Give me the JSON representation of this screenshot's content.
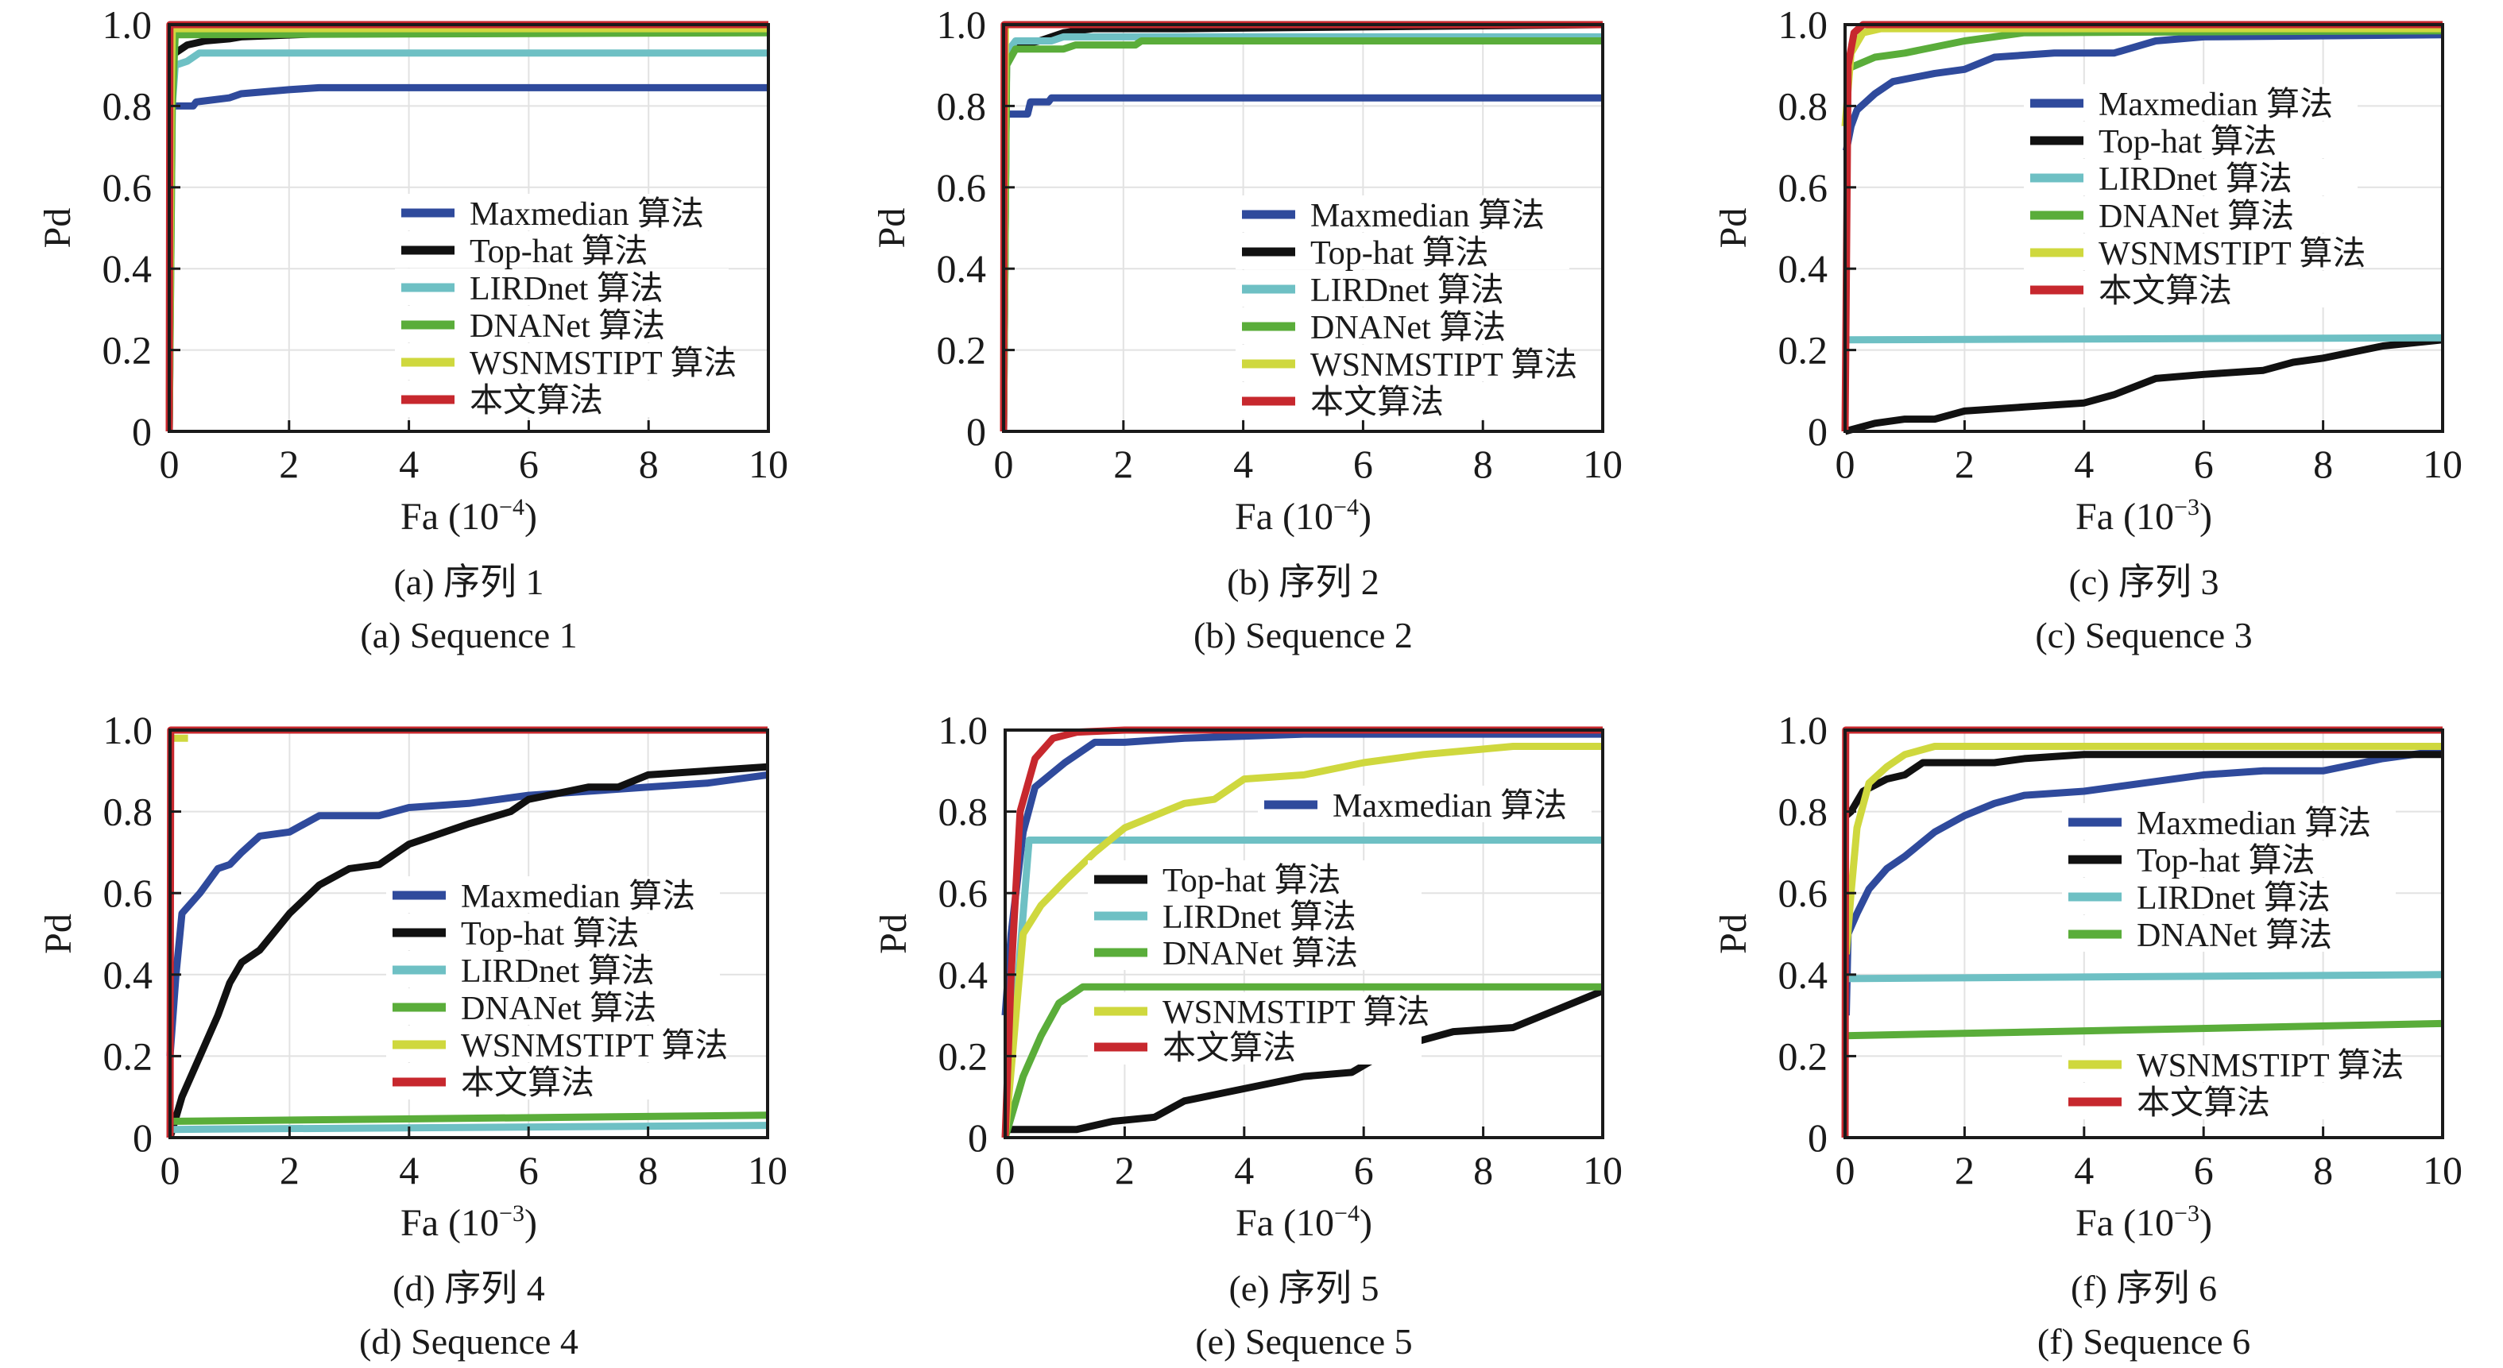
{
  "figure": {
    "legend_labels": [
      "Maxmedian 算法",
      "Top-hat 算法",
      "LIRDnet 算法",
      "DNANet 算法",
      "WSNMSTIPT 算法",
      "本文算法"
    ],
    "series_colors": {
      "Maxmedian": "#2f4a9c",
      "Top-hat": "#111111",
      "LIRDnet": "#6ec0c4",
      "DNANet": "#5aad3a",
      "WSNMSTIPT": "#cfd83e",
      "Ours": "#c7282e"
    }
  },
  "chart_data": [
    {
      "id": "a",
      "type": "line",
      "title": "",
      "caption_cn": "(a) 序列 1",
      "caption_en": "(a) Sequence 1",
      "xlabel": "Fa (10",
      "xlabel_exp": "−4",
      "xlabel_close": ")",
      "ylabel": "Pd",
      "xlim": [
        0,
        10
      ],
      "ylim": [
        0,
        1
      ],
      "xticks": [
        "0",
        "2",
        "4",
        "6",
        "8",
        "10"
      ],
      "yticks": [
        "0",
        "0.2",
        "0.4",
        "0.6",
        "0.8",
        "1.0"
      ],
      "grid": true,
      "legend": "center-right",
      "series": [
        {
          "name": "Maxmedian 算法",
          "key": "Maxmedian",
          "x": [
            0,
            0.4,
            0.45,
            1.0,
            1.2,
            2.0,
            2.5,
            10
          ],
          "y": [
            0.8,
            0.8,
            0.81,
            0.82,
            0.83,
            0.84,
            0.845,
            0.845
          ]
        },
        {
          "name": "Top-hat 算法",
          "key": "Top-hat",
          "x": [
            0,
            0.05,
            0.1,
            0.3,
            0.6,
            1.0,
            1.2,
            3.0,
            4.0,
            10
          ],
          "y": [
            0,
            0.93,
            0.93,
            0.95,
            0.96,
            0.965,
            0.97,
            0.98,
            0.985,
            0.985
          ]
        },
        {
          "name": "LIRDnet 算法",
          "key": "LIRDnet",
          "x": [
            0,
            0.05,
            0.1,
            0.3,
            0.5,
            10
          ],
          "y": [
            0,
            0.8,
            0.9,
            0.91,
            0.93,
            0.93
          ]
        },
        {
          "name": "DNANet 算法",
          "key": "DNANet",
          "x": [
            0,
            0.05,
            0.1,
            10
          ],
          "y": [
            0,
            0.8,
            0.975,
            0.98
          ]
        },
        {
          "name": "WSNMSTIPT 算法",
          "key": "WSNMSTIPT",
          "x": [
            0,
            0.03,
            0.05,
            10
          ],
          "y": [
            0,
            0.8,
            0.99,
            0.99
          ]
        },
        {
          "name": "本文算法",
          "key": "Ours",
          "x": [
            0,
            0.01,
            10
          ],
          "y": [
            0,
            1.0,
            1.0
          ]
        }
      ]
    },
    {
      "id": "b",
      "type": "line",
      "title": "",
      "caption_cn": "(b) 序列 2",
      "caption_en": "(b) Sequence 2",
      "xlabel": "Fa (10",
      "xlabel_exp": "−4",
      "xlabel_close": ")",
      "ylabel": "Pd",
      "xlim": [
        0,
        10
      ],
      "ylim": [
        0,
        1
      ],
      "xticks": [
        "0",
        "2",
        "4",
        "6",
        "8",
        "10"
      ],
      "yticks": [
        "0",
        "0.2",
        "0.4",
        "0.6",
        "0.8",
        "1.0"
      ],
      "grid": true,
      "legend": "center-right",
      "series": [
        {
          "name": "Maxmedian 算法",
          "key": "Maxmedian",
          "x": [
            0,
            0.4,
            0.45,
            0.75,
            0.8,
            10
          ],
          "y": [
            0.78,
            0.78,
            0.81,
            0.81,
            0.82,
            0.82
          ]
        },
        {
          "name": "Top-hat 算法",
          "key": "Top-hat",
          "x": [
            0,
            0.05,
            0.3,
            0.6,
            1.0,
            1.5,
            3.0,
            10
          ],
          "y": [
            0,
            0.93,
            0.95,
            0.96,
            0.98,
            0.99,
            0.99,
            1.0
          ]
        },
        {
          "name": "LIRDnet 算法",
          "key": "LIRDnet",
          "x": [
            0,
            0.05,
            0.2,
            0.8,
            1.0,
            10
          ],
          "y": [
            0,
            0.93,
            0.96,
            0.96,
            0.97,
            0.97
          ]
        },
        {
          "name": "DNANet 算法",
          "key": "DNANet",
          "x": [
            0,
            0.05,
            0.2,
            1.0,
            1.2,
            2.2,
            2.3,
            10
          ],
          "y": [
            0,
            0.9,
            0.94,
            0.94,
            0.95,
            0.95,
            0.96,
            0.96
          ]
        },
        {
          "name": "WSNMSTIPT 算法",
          "key": "WSNMSTIPT",
          "x": [
            0,
            0.03,
            10
          ],
          "y": [
            0,
            1.0,
            1.0
          ]
        },
        {
          "name": "本文算法",
          "key": "Ours",
          "x": [
            0,
            0.01,
            10
          ],
          "y": [
            0,
            1.0,
            1.0
          ]
        }
      ]
    },
    {
      "id": "c",
      "type": "line",
      "title": "",
      "caption_cn": "(c) 序列 3",
      "caption_en": "(c) Sequence 3",
      "xlabel": "Fa (10",
      "xlabel_exp": "−3",
      "xlabel_close": ")",
      "ylabel": "Pd",
      "xlim": [
        0,
        10
      ],
      "ylim": [
        0,
        1
      ],
      "xticks": [
        "0",
        "2",
        "4",
        "6",
        "8",
        "10"
      ],
      "yticks": [
        "0",
        "0.2",
        "0.4",
        "0.6",
        "0.8",
        "1.0"
      ],
      "grid": true,
      "legend": "upper-right",
      "series": [
        {
          "name": "Maxmedian 算法",
          "key": "Maxmedian",
          "x": [
            0.02,
            0.1,
            0.2,
            0.5,
            0.8,
            1.5,
            2.0,
            2.5,
            3.5,
            4.5,
            5.2,
            6.0,
            10
          ],
          "y": [
            0.69,
            0.75,
            0.79,
            0.83,
            0.86,
            0.88,
            0.89,
            0.92,
            0.93,
            0.93,
            0.96,
            0.97,
            0.975
          ]
        },
        {
          "name": "Top-hat 算法",
          "key": "Top-hat",
          "x": [
            0,
            0.5,
            1.0,
            1.5,
            2.0,
            3.0,
            4.0,
            4.5,
            5.2,
            6.0,
            7.0,
            7.5,
            8.0,
            9.0,
            10
          ],
          "y": [
            0,
            0.02,
            0.03,
            0.03,
            0.05,
            0.06,
            0.07,
            0.09,
            0.13,
            0.14,
            0.15,
            0.17,
            0.18,
            0.21,
            0.225
          ]
        },
        {
          "name": "LIRDnet 算法",
          "key": "LIRDnet",
          "x": [
            0,
            10
          ],
          "y": [
            0.225,
            0.23
          ]
        },
        {
          "name": "DNANet 算法",
          "key": "DNANet",
          "x": [
            0.02,
            0.5,
            1.0,
            2.0,
            3.0,
            10
          ],
          "y": [
            0.89,
            0.92,
            0.93,
            0.96,
            0.98,
            0.985
          ]
        },
        {
          "name": "WSNMSTIPT 算法",
          "key": "WSNMSTIPT",
          "x": [
            0,
            0.1,
            0.3,
            0.6,
            10
          ],
          "y": [
            0.75,
            0.93,
            0.98,
            0.99,
            0.99
          ]
        },
        {
          "name": "本文算法",
          "key": "Ours",
          "x": [
            0,
            0.05,
            0.15,
            0.3,
            10
          ],
          "y": [
            0,
            0.9,
            0.98,
            1.0,
            1.0
          ]
        }
      ]
    },
    {
      "id": "d",
      "type": "line",
      "title": "",
      "caption_cn": "(d) 序列 4",
      "caption_en": "(d) Sequence 4",
      "xlabel": "Fa (10",
      "xlabel_exp": "−3",
      "xlabel_close": ")",
      "ylabel": "Pd",
      "xlim": [
        0,
        10
      ],
      "ylim": [
        0,
        1
      ],
      "xticks": [
        "0",
        "2",
        "4",
        "6",
        "8",
        "10"
      ],
      "yticks": [
        "0",
        "0.2",
        "0.4",
        "0.6",
        "0.8",
        "1.0"
      ],
      "grid": true,
      "legend": "center-right",
      "series": [
        {
          "name": "Maxmedian 算法",
          "key": "Maxmedian",
          "x": [
            0,
            0.1,
            0.2,
            0.5,
            0.8,
            1.0,
            1.2,
            1.5,
            2.0,
            2.5,
            3.5,
            4.0,
            5.0,
            6.0,
            7.0,
            8.0,
            9.0,
            10
          ],
          "y": [
            0.2,
            0.4,
            0.55,
            0.6,
            0.66,
            0.67,
            0.7,
            0.74,
            0.75,
            0.79,
            0.79,
            0.81,
            0.82,
            0.84,
            0.85,
            0.86,
            0.87,
            0.89
          ]
        },
        {
          "name": "Top-hat 算法",
          "key": "Top-hat",
          "x": [
            0,
            0.2,
            0.5,
            0.8,
            1.0,
            1.2,
            1.5,
            2.0,
            2.5,
            3.0,
            3.5,
            4.0,
            5.0,
            5.7,
            6.0,
            7.0,
            7.5,
            8.0,
            9.0,
            10
          ],
          "y": [
            0,
            0.1,
            0.2,
            0.3,
            0.38,
            0.43,
            0.46,
            0.55,
            0.62,
            0.66,
            0.67,
            0.72,
            0.77,
            0.8,
            0.83,
            0.86,
            0.86,
            0.89,
            0.9,
            0.91
          ]
        },
        {
          "name": "LIRDnet 算法",
          "key": "LIRDnet",
          "x": [
            0,
            10
          ],
          "y": [
            0.02,
            0.03
          ]
        },
        {
          "name": "DNANet 算法",
          "key": "DNANet",
          "x": [
            0,
            10
          ],
          "y": [
            0.04,
            0.055
          ]
        },
        {
          "name": "WSNMSTIPT 算法",
          "key": "WSNMSTIPT",
          "x": [
            0.05,
            0.3
          ],
          "y": [
            0.98,
            0.98
          ]
        },
        {
          "name": "本文算法",
          "key": "Ours",
          "x": [
            0,
            0.01,
            10
          ],
          "y": [
            0,
            1.0,
            1.0
          ]
        }
      ]
    },
    {
      "id": "e",
      "type": "line",
      "title": "",
      "caption_cn": "(e) 序列 5",
      "caption_en": "(e) Sequence 5",
      "xlabel": "Fa (10",
      "xlabel_exp": "−4",
      "xlabel_close": ")",
      "ylabel": "Pd",
      "xlim": [
        0,
        10
      ],
      "ylim": [
        0,
        1
      ],
      "xticks": [
        "0",
        "2",
        "4",
        "6",
        "8",
        "10"
      ],
      "yticks": [
        "0",
        "0.2",
        "0.4",
        "0.6",
        "0.8",
        "1.0"
      ],
      "grid": true,
      "legend": "split: Maxmedian upper-right; others center",
      "series": [
        {
          "name": "Maxmedian 算法",
          "key": "Maxmedian",
          "x": [
            0,
            0.1,
            0.3,
            0.5,
            1.0,
            1.5,
            2.0,
            3.0,
            5.0,
            10
          ],
          "y": [
            0.3,
            0.5,
            0.75,
            0.86,
            0.92,
            0.97,
            0.97,
            0.98,
            0.99,
            0.99
          ]
        },
        {
          "name": "Top-hat 算法",
          "key": "Top-hat",
          "x": [
            0,
            1.2,
            1.8,
            2.5,
            3.0,
            4.0,
            5.0,
            5.8,
            6.5,
            7.5,
            8.5,
            10
          ],
          "y": [
            0.02,
            0.02,
            0.04,
            0.05,
            0.09,
            0.12,
            0.15,
            0.16,
            0.22,
            0.26,
            0.27,
            0.36
          ]
        },
        {
          "name": "LIRDnet 算法",
          "key": "LIRDnet",
          "x": [
            0,
            0.4,
            10
          ],
          "y": [
            0,
            0.73,
            0.73
          ]
        },
        {
          "name": "DNANet 算法",
          "key": "DNANet",
          "x": [
            0,
            0.3,
            0.6,
            0.9,
            1.3,
            10
          ],
          "y": [
            0,
            0.15,
            0.25,
            0.33,
            0.37,
            0.37
          ]
        },
        {
          "name": "WSNMSTIPT 算法",
          "key": "WSNMSTIPT",
          "x": [
            0,
            0.3,
            0.6,
            1.0,
            1.5,
            2.0,
            3.0,
            3.5,
            4.0,
            5.0,
            6.0,
            7.0,
            8.5,
            10
          ],
          "y": [
            0,
            0.5,
            0.57,
            0.63,
            0.7,
            0.76,
            0.82,
            0.83,
            0.88,
            0.89,
            0.92,
            0.94,
            0.96,
            0.96
          ]
        },
        {
          "name": "本文算法",
          "key": "Ours",
          "x": [
            0,
            0.1,
            0.25,
            0.5,
            0.8,
            1.2,
            2.0,
            10
          ],
          "y": [
            0,
            0.4,
            0.8,
            0.93,
            0.98,
            0.995,
            1.0,
            1.0
          ]
        }
      ]
    },
    {
      "id": "f",
      "type": "line",
      "title": "",
      "caption_cn": "(f) 序列 6",
      "caption_en": "(f) Sequence 6",
      "xlabel": "Fa (10",
      "xlabel_exp": "−3",
      "xlabel_close": ")",
      "ylabel": "Pd",
      "xlim": [
        0,
        10
      ],
      "ylim": [
        0,
        1
      ],
      "xticks": [
        "0",
        "2",
        "4",
        "6",
        "8",
        "10"
      ],
      "yticks": [
        "0",
        "0.2",
        "0.4",
        "0.6",
        "0.8",
        "1.0"
      ],
      "grid": true,
      "legend": "split: four upper-right; two lower-right",
      "series": [
        {
          "name": "Maxmedian 算法",
          "key": "Maxmedian",
          "x": [
            0.02,
            0.05,
            0.2,
            0.4,
            0.7,
            1.0,
            1.5,
            2.0,
            2.5,
            3.0,
            4.0,
            5.0,
            6.0,
            7.0,
            8.0,
            9.0,
            10
          ],
          "y": [
            0.3,
            0.5,
            0.55,
            0.61,
            0.66,
            0.69,
            0.75,
            0.79,
            0.82,
            0.84,
            0.85,
            0.87,
            0.89,
            0.9,
            0.9,
            0.93,
            0.95
          ]
        },
        {
          "name": "Top-hat 算法",
          "key": "Top-hat",
          "x": [
            0.02,
            0.1,
            0.3,
            0.7,
            1.0,
            1.3,
            2.5,
            3.0,
            4.0,
            10
          ],
          "y": [
            0.79,
            0.8,
            0.85,
            0.88,
            0.89,
            0.92,
            0.92,
            0.93,
            0.94,
            0.94
          ]
        },
        {
          "name": "LIRDnet 算法",
          "key": "LIRDnet",
          "x": [
            0,
            10
          ],
          "y": [
            0.39,
            0.4
          ]
        },
        {
          "name": "DNANet 算法",
          "key": "DNANet",
          "x": [
            0,
            10
          ],
          "y": [
            0.25,
            0.28
          ]
        },
        {
          "name": "WSNMSTIPT 算法",
          "key": "WSNMSTIPT",
          "x": [
            0.02,
            0.1,
            0.2,
            0.4,
            0.7,
            1.0,
            1.5,
            10
          ],
          "y": [
            0.45,
            0.6,
            0.76,
            0.87,
            0.91,
            0.94,
            0.96,
            0.96
          ]
        },
        {
          "name": "本文算法",
          "key": "Ours",
          "x": [
            0,
            0.01,
            10
          ],
          "y": [
            0,
            1.0,
            1.0
          ]
        }
      ]
    }
  ]
}
